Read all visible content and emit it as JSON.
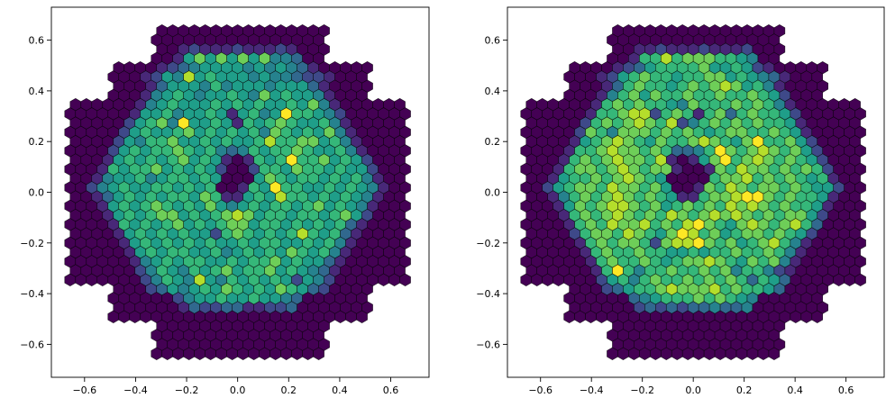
{
  "chart_data": [
    {
      "type": "heatmap",
      "marker": "hexagon",
      "colormap": "viridis",
      "color_levels": [
        "#440154",
        "#482878",
        "#3e4989",
        "#31688e",
        "#26828e",
        "#1f9e89",
        "#35b779",
        "#6ece58",
        "#b5de2b",
        "#fde725"
      ],
      "xlim": [
        -0.73,
        0.75
      ],
      "ylim": [
        -0.73,
        0.73
      ],
      "grid": false,
      "xticks": [
        -0.6,
        -0.4,
        -0.2,
        0.0,
        0.2,
        0.4,
        0.6
      ],
      "xtick_labels": [
        "−0.6",
        "−0.4",
        "−0.2",
        "0.0",
        "0.2",
        "0.4",
        "0.6"
      ],
      "yticks": [
        -0.6,
        -0.4,
        -0.2,
        0.0,
        0.2,
        0.4,
        0.6
      ],
      "ytick_labels": [
        "−0.6",
        "−0.4",
        "−0.2",
        "0.0",
        "0.2",
        "0.4",
        "0.6"
      ],
      "rows": [
        "........0000000000000000.......",
        "........0000000000000000........",
        "........0012111211121000.......",
        "........0015757575744300........",
        "....000012345555454543100000...",
        "....000125485655545443221000....",
        "....000135554645554555310000...",
        "....000145654556547565541000....",
        "0000001456555656565565741000000",
        "00000015564556515645966542000000",
        "0000025674955651656765564100000",
        "00000256556756565647656574100000",
        "0000254667556565568667756410000",
        "00002565667656434656676556410000",
        "0001565656756510165696675652000",
        "00016566756565200266576656552000",
        "0014556456656500057656656564100",
        "00245655665656001659665565654100",
        "0013565656657611565866565654100",
        "00015656765657545656656756541000",
        "0001565677565678756656656752000",
        "00001656567565677566565656310000",
        "0000156565655267656568656310000",
        "00000156565656556566556564100000",
        "0000015656655645656576564100000",
        "00000014565665565667565531000000",
        "0000002465465675667565431000000",
        "00000002465485465656525420000000",
        "....000235456576565765320000...",
        "....000000245565565543000000....",
        "....000000132233112230000000...",
        "....000000000000000000000000....",
        "........0000000000000000.......",
        "........0000000000000000........",
        "........0000000000000000.......",
        "........0000000000000000........"
      ]
    },
    {
      "type": "heatmap",
      "marker": "hexagon",
      "colormap": "viridis",
      "color_levels": [
        "#440154",
        "#482878",
        "#3e4989",
        "#31688e",
        "#26828e",
        "#1f9e89",
        "#35b779",
        "#6ece58",
        "#b5de2b",
        "#fde725"
      ],
      "xlim": [
        -0.73,
        0.75
      ],
      "ylim": [
        -0.73,
        0.73
      ],
      "grid": false,
      "xticks": [
        -0.6,
        -0.4,
        -0.2,
        0.0,
        0.2,
        0.4,
        0.6
      ],
      "xtick_labels": [
        "−0.6",
        "−0.4",
        "−0.2",
        "0.0",
        "0.2",
        "0.4",
        "0.6"
      ],
      "yticks": [
        -0.6,
        -0.4,
        -0.2,
        0.0,
        0.2,
        0.4,
        0.6
      ],
      "ytick_labels": [
        "−0.6",
        "−0.4",
        "−0.2",
        "0.0",
        "0.2",
        "0.4",
        "0.6"
      ],
      "rows": [
        "........0000000000000000.......",
        "........0000000000000000........",
        "........0011211121112000.......",
        "........0016686777665400........",
        "....000012356666755652100000...",
        "....000125676656677565431000....",
        "....000136766567678756410000...",
        "....000146757667667667652000....",
        "0000001676766547666767641000000",
        "00000016678826761673676652000000",
        "0000026767876824676767665100000",
        "00000276477767676567766765100000",
        "0000156787657667876579667520000",
        "00001667877676334697678767520000",
        "0001676787768101579678767652000",
        "00016776787677100176877676762000",
        "0015667678765000067786767656100",
        "00256776877675001768767767655200",
        "0014676787676511677899767665100",
        "00015767887675676768787676651000",
        "0001676787676876787876767752000",
        "00001676877867689765787678630000",
        "0000267768765798675677676520000",
        "00000167677627889767567864100000",
        "0000016766766556566766764100000",
        "00000016766765677876576741000000",
        "0000001696466766767466421000000",
        "00000002564676676767636530000000",
        "....000235667877786766530000...",
        "....000000345666767654000000....",
        "....000000232323343340000000...",
        "....000000000000000000000000....",
        "........0000000000000000.......",
        "........0000000000000000........",
        "........0000000000000000.......",
        "........0000000000000000........"
      ]
    }
  ]
}
